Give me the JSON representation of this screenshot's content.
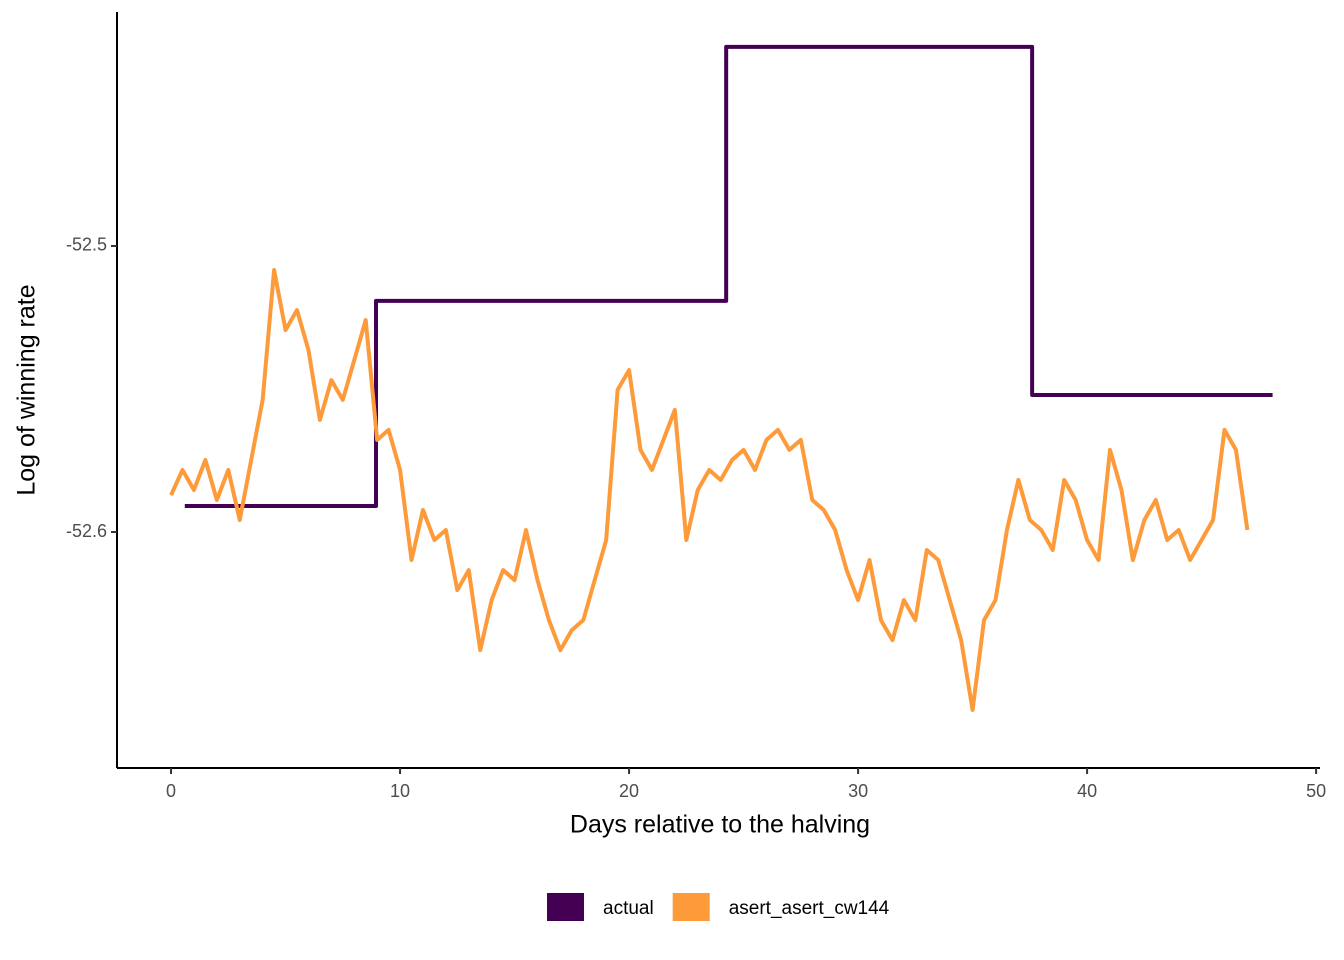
{
  "chart_data": {
    "type": "line",
    "x_label": "Days relative to the halving",
    "y_label": "Log of winning rate",
    "xlim": [
      -2.36,
      50.17
    ],
    "xticks": [
      0,
      10,
      20,
      30,
      40,
      50
    ],
    "ylim": [
      -52.6825,
      -52.4182
    ],
    "yticks": [
      -52.6,
      -52.5
    ],
    "grid": false,
    "legend": "bottom",
    "series": [
      {
        "name": "actual",
        "color": "#440154",
        "step": true,
        "x": [
          0.6,
          8.95,
          8.95,
          24.24,
          24.24,
          37.6,
          37.6,
          48.1
        ],
        "values": [
          -52.5909,
          -52.5909,
          -52.5192,
          -52.5192,
          -52.4304,
          -52.4304,
          -52.5521,
          -52.5521
        ]
      },
      {
        "name": "asert_asert_cw144",
        "color": "#fd9a3a",
        "x": [
          0,
          0.5,
          1,
          1.5,
          2,
          2.5,
          3,
          3.5,
          4,
          4.5,
          5,
          5.5,
          6,
          6.5,
          7,
          7.5,
          8,
          8.5,
          9,
          9.5,
          10,
          10.5,
          11,
          11.5,
          12,
          12.5,
          13,
          13.5,
          14,
          14.5,
          15,
          15.5,
          16,
          16.5,
          17,
          17.5,
          18,
          18.5,
          19,
          19.5,
          20,
          20.5,
          21,
          21.5,
          22,
          22.5,
          23,
          23.5,
          24,
          24.5,
          25,
          25.5,
          26,
          26.5,
          27,
          27.5,
          28,
          28.5,
          29,
          29.5,
          30,
          30.5,
          31,
          31.5,
          32,
          32.5,
          33,
          33.5,
          34,
          34.5,
          35,
          35.5,
          36,
          36.5,
          37,
          37.5,
          38,
          38.5,
          39,
          39.5,
          40,
          40.5,
          41,
          41.5,
          42,
          42.5,
          43,
          43.5,
          44,
          44.5,
          45,
          45.5,
          46,
          46.5,
          47
        ],
        "values": [
          -52.5871,
          -52.5783,
          -52.5853,
          -52.5748,
          -52.5888,
          -52.5783,
          -52.5958,
          -52.5748,
          -52.5538,
          -52.5084,
          -52.5294,
          -52.5224,
          -52.5364,
          -52.5608,
          -52.5469,
          -52.5538,
          -52.5399,
          -52.5259,
          -52.5678,
          -52.5643,
          -52.5783,
          -52.6098,
          -52.5923,
          -52.6028,
          -52.5993,
          -52.6203,
          -52.6133,
          -52.6413,
          -52.6238,
          -52.6133,
          -52.6168,
          -52.5993,
          -52.6168,
          -52.6308,
          -52.6413,
          -52.6343,
          -52.6308,
          -52.6168,
          -52.6028,
          -52.5503,
          -52.5434,
          -52.5713,
          -52.5783,
          -52.5678,
          -52.5573,
          -52.6028,
          -52.5853,
          -52.5783,
          -52.5818,
          -52.5748,
          -52.5713,
          -52.5783,
          -52.5678,
          -52.5643,
          -52.5713,
          -52.5678,
          -52.5888,
          -52.5923,
          -52.5993,
          -52.6133,
          -52.6238,
          -52.6098,
          -52.6308,
          -52.6378,
          -52.6238,
          -52.6308,
          -52.6063,
          -52.6098,
          -52.6238,
          -52.6378,
          -52.6622,
          -52.6308,
          -52.6238,
          -52.5993,
          -52.5818,
          -52.5958,
          -52.5993,
          -52.6063,
          -52.5818,
          -52.5888,
          -52.6028,
          -52.6098,
          -52.5713,
          -52.5853,
          -52.6098,
          -52.5958,
          -52.5888,
          -52.6028,
          -52.5993,
          -52.6098,
          -52.6028,
          -52.5958,
          -52.5643,
          -52.5713,
          -52.5993
        ]
      }
    ]
  }
}
